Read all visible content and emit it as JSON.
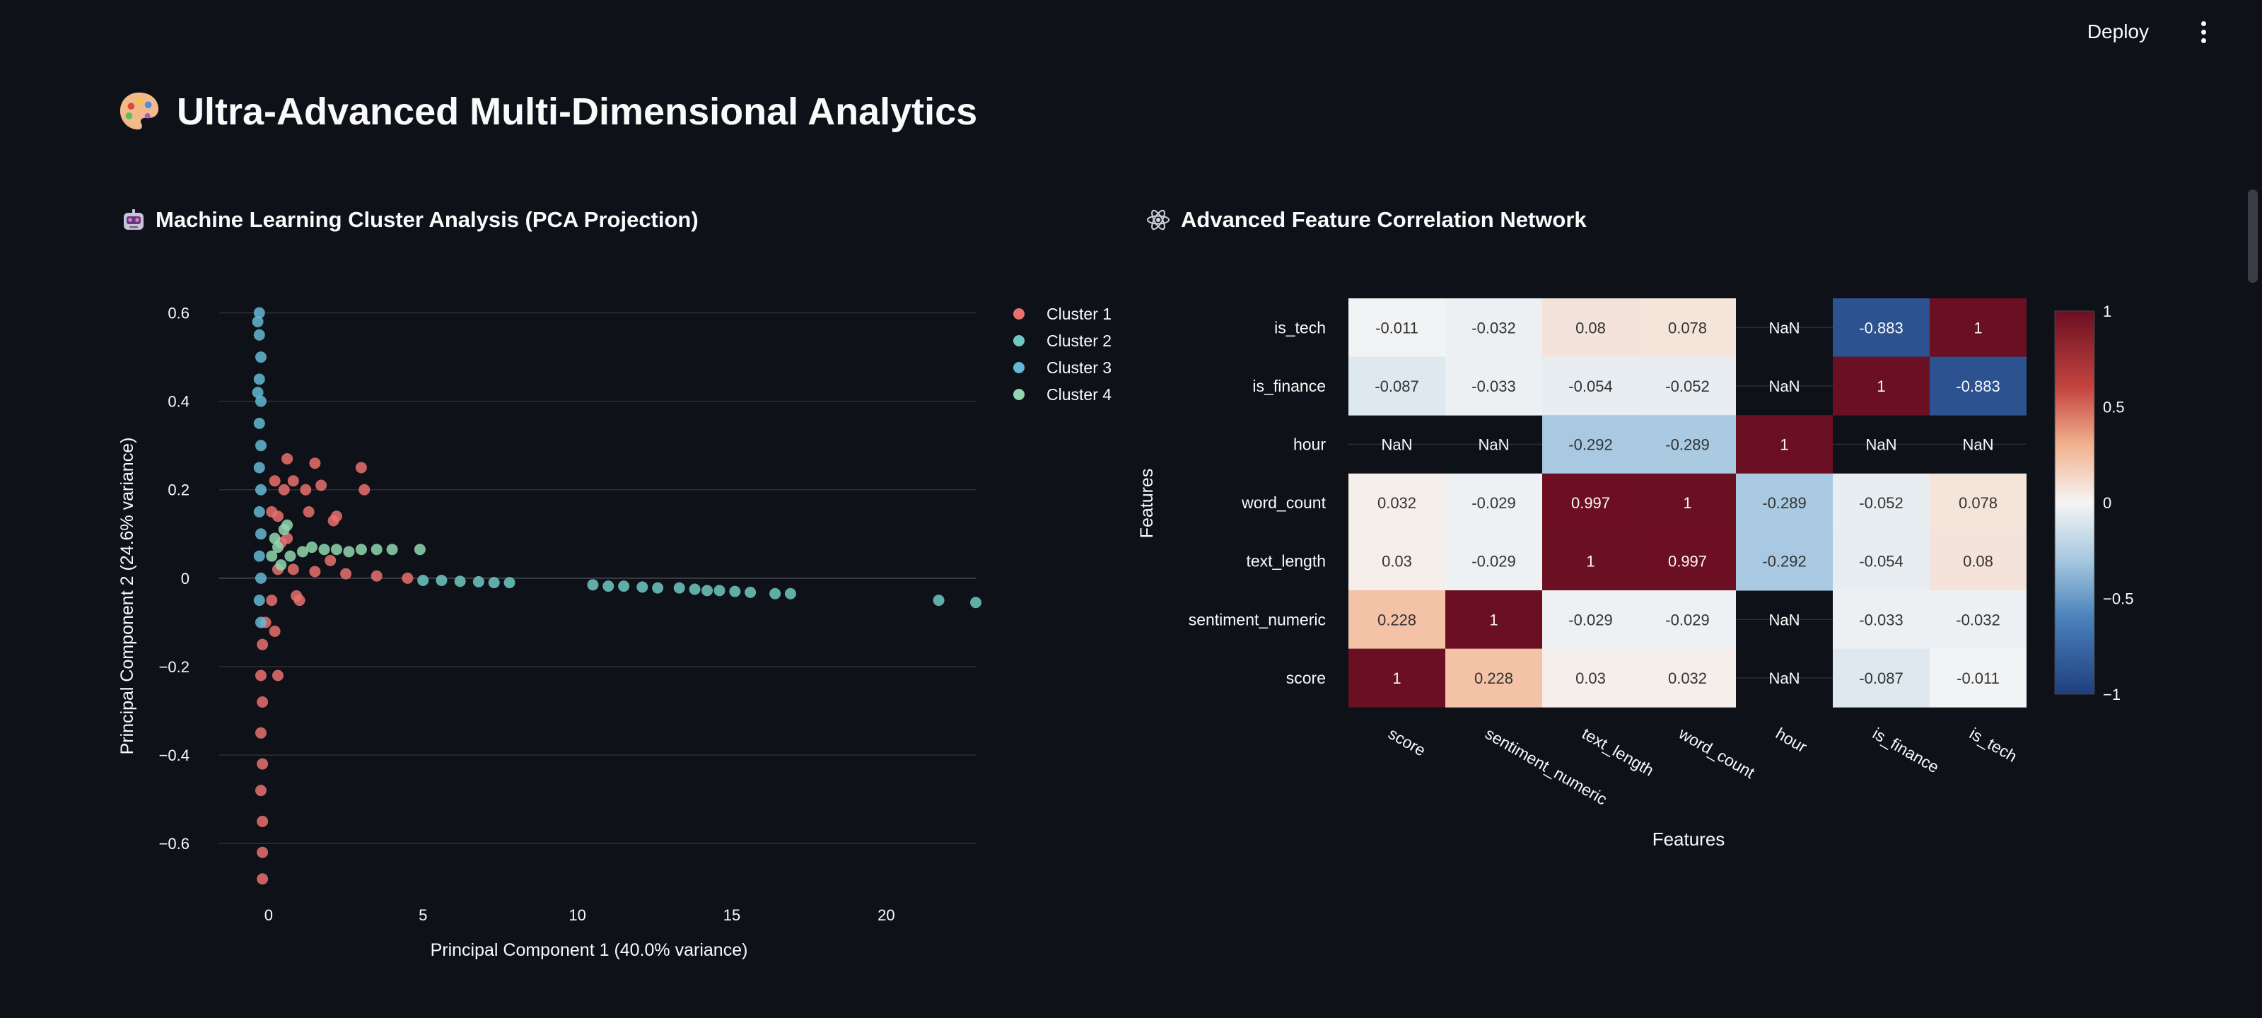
{
  "header": {
    "deploy_label": "Deploy",
    "menu_icon": "kebab-menu-icon"
  },
  "page_title": "Ultra-Advanced Multi-Dimensional Analytics",
  "sections": {
    "cluster": {
      "title": "Machine Learning Cluster Analysis (PCA Projection)",
      "icon": "robot-icon"
    },
    "correlation": {
      "title": "Advanced Feature Correlation Network",
      "icon": "atom-icon"
    }
  },
  "colors": {
    "cluster_1": "#e8716e",
    "cluster_2": "#6fc9c2",
    "cluster_3": "#63b8d3",
    "cluster_4": "#8fd7b0",
    "heat_neg": "#2a4f93",
    "heat_pos": "#6b0f22"
  },
  "chart_data": [
    {
      "type": "scatter",
      "xlabel": "Principal Component 1 (40.0% variance)",
      "ylabel": "Principal Component 2 (24.6% variance)",
      "xlim": [
        -1.6,
        22.9
      ],
      "ylim": [
        -0.71,
        0.62
      ],
      "x_ticks": [
        0,
        5,
        10,
        15,
        20
      ],
      "x_tick_labels": [
        "0",
        "5",
        "10",
        "15",
        "20"
      ],
      "y_ticks": [
        0.6,
        0.4,
        0.2,
        0,
        -0.2,
        -0.4,
        -0.6
      ],
      "y_tick_labels": [
        "0.6",
        "0.4",
        "0.2",
        "0",
        "−0.2",
        "−0.4",
        "−0.6"
      ],
      "grid": true,
      "legend_position": "top-right-outside",
      "series": [
        {
          "name": "Cluster 1",
          "points": [
            [
              -0.2,
              -0.68
            ],
            [
              -0.2,
              -0.62
            ],
            [
              -0.2,
              -0.55
            ],
            [
              -0.25,
              -0.48
            ],
            [
              -0.2,
              -0.42
            ],
            [
              -0.25,
              -0.35
            ],
            [
              -0.2,
              -0.28
            ],
            [
              -0.25,
              -0.22
            ],
            [
              -0.2,
              -0.15
            ],
            [
              -0.1,
              -0.1
            ],
            [
              0.2,
              -0.12
            ],
            [
              0.3,
              -0.22
            ],
            [
              0.1,
              -0.05
            ],
            [
              0.3,
              0.02
            ],
            [
              0.8,
              0.02
            ],
            [
              1.5,
              0.015
            ],
            [
              2.5,
              0.01
            ],
            [
              3.5,
              0.005
            ],
            [
              4.5,
              0.0
            ],
            [
              0.1,
              0.15
            ],
            [
              0.3,
              0.14
            ],
            [
              0.5,
              0.2
            ],
            [
              0.8,
              0.22
            ],
            [
              1.2,
              0.2
            ],
            [
              1.5,
              0.26
            ],
            [
              1.7,
              0.21
            ],
            [
              2.2,
              0.14
            ],
            [
              2.0,
              0.04
            ],
            [
              0.6,
              0.09
            ],
            [
              0.4,
              0.08
            ],
            [
              0.9,
              -0.04
            ],
            [
              1.0,
              -0.05
            ],
            [
              3.0,
              0.25
            ],
            [
              3.1,
              0.2
            ],
            [
              2.1,
              0.13
            ],
            [
              0.6,
              0.27
            ],
            [
              1.3,
              0.15
            ],
            [
              0.2,
              0.22
            ]
          ]
        },
        {
          "name": "Cluster 2",
          "points": [
            [
              5.0,
              -0.005
            ],
            [
              5.6,
              -0.005
            ],
            [
              6.2,
              -0.007
            ],
            [
              6.8,
              -0.008
            ],
            [
              7.3,
              -0.01
            ],
            [
              7.8,
              -0.01
            ],
            [
              10.5,
              -0.015
            ],
            [
              11.0,
              -0.018
            ],
            [
              11.5,
              -0.018
            ],
            [
              12.1,
              -0.02
            ],
            [
              12.6,
              -0.022
            ],
            [
              13.3,
              -0.022
            ],
            [
              13.8,
              -0.025
            ],
            [
              14.2,
              -0.028
            ],
            [
              14.6,
              -0.028
            ],
            [
              15.1,
              -0.03
            ],
            [
              15.6,
              -0.032
            ],
            [
              16.4,
              -0.035
            ],
            [
              16.9,
              -0.035
            ],
            [
              21.7,
              -0.05
            ],
            [
              22.9,
              -0.055
            ]
          ]
        },
        {
          "name": "Cluster 3",
          "points": [
            [
              -0.3,
              0.6
            ],
            [
              -0.3,
              0.55
            ],
            [
              -0.25,
              0.5
            ],
            [
              -0.3,
              0.45
            ],
            [
              -0.25,
              0.4
            ],
            [
              -0.3,
              0.35
            ],
            [
              -0.25,
              0.3
            ],
            [
              -0.3,
              0.25
            ],
            [
              -0.25,
              0.2
            ],
            [
              -0.3,
              0.15
            ],
            [
              -0.25,
              0.1
            ],
            [
              -0.3,
              0.05
            ],
            [
              -0.25,
              0.0
            ],
            [
              -0.3,
              -0.05
            ],
            [
              -0.25,
              -0.1
            ],
            [
              -0.35,
              0.42
            ],
            [
              -0.35,
              0.58
            ]
          ]
        },
        {
          "name": "Cluster 4",
          "points": [
            [
              0.1,
              0.05
            ],
            [
              0.3,
              0.07
            ],
            [
              0.5,
              0.11
            ],
            [
              0.2,
              0.09
            ],
            [
              0.4,
              0.03
            ],
            [
              1.1,
              0.06
            ],
            [
              1.4,
              0.07
            ],
            [
              1.8,
              0.065
            ],
            [
              2.2,
              0.065
            ],
            [
              2.6,
              0.06
            ],
            [
              3.0,
              0.065
            ],
            [
              3.5,
              0.065
            ],
            [
              4.0,
              0.065
            ],
            [
              4.9,
              0.065
            ],
            [
              0.7,
              0.05
            ],
            [
              0.6,
              0.12
            ]
          ]
        }
      ]
    },
    {
      "type": "heatmap",
      "xlabel": "Features",
      "ylabel": "Features",
      "x_labels": [
        "score",
        "sentiment_numeric",
        "text_length",
        "word_count",
        "hour",
        "is_finance",
        "is_tech"
      ],
      "y_labels": [
        "is_tech",
        "is_finance",
        "hour",
        "word_count",
        "text_length",
        "sentiment_numeric",
        "score"
      ],
      "colorbar_ticks": [
        1,
        0.5,
        0,
        -0.5,
        -1
      ],
      "colorbar_tick_labels": [
        "1",
        "0.5",
        "0",
        "−0.5",
        "−1"
      ],
      "zlim": [
        -1,
        1
      ],
      "values": [
        [
          -0.011,
          -0.032,
          0.08,
          0.078,
          null,
          -0.883,
          1
        ],
        [
          -0.087,
          -0.033,
          -0.054,
          -0.052,
          null,
          1,
          -0.883
        ],
        [
          null,
          null,
          -0.292,
          -0.289,
          1,
          null,
          null
        ],
        [
          0.032,
          -0.029,
          0.997,
          1,
          -0.289,
          -0.052,
          0.078
        ],
        [
          0.03,
          -0.029,
          1,
          0.997,
          -0.292,
          -0.054,
          0.08
        ],
        [
          0.228,
          1,
          -0.029,
          -0.029,
          null,
          -0.033,
          -0.032
        ],
        [
          1,
          0.228,
          0.03,
          0.032,
          null,
          -0.087,
          -0.011
        ]
      ],
      "text": [
        [
          "-0.011",
          "-0.032",
          "0.08",
          "0.078",
          "NaN",
          "-0.883",
          "1"
        ],
        [
          "-0.087",
          "-0.033",
          "-0.054",
          "-0.052",
          "NaN",
          "1",
          "-0.883"
        ],
        [
          "NaN",
          "NaN",
          "-0.292",
          "-0.289",
          "1",
          "NaN",
          "NaN"
        ],
        [
          "0.032",
          "-0.029",
          "0.997",
          "1",
          "-0.289",
          "-0.052",
          "0.078"
        ],
        [
          "0.03",
          "-0.029",
          "1",
          "0.997",
          "-0.292",
          "-0.054",
          "0.08"
        ],
        [
          "0.228",
          "1",
          "-0.029",
          "-0.029",
          "NaN",
          "-0.033",
          "-0.032"
        ],
        [
          "1",
          "0.228",
          "0.03",
          "0.032",
          "NaN",
          "-0.087",
          "-0.011"
        ]
      ]
    }
  ]
}
